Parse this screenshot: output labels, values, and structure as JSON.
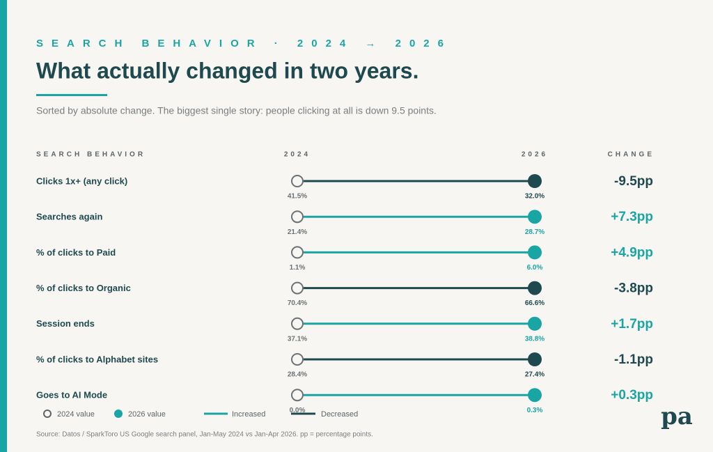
{
  "header": {
    "kicker": "SEARCH BEHAVIOR · 2024 → 2026",
    "title": "What actually changed in two years.",
    "subtitle": "Sorted by absolute change. The biggest single story: people clicking at all is down 9.5 points."
  },
  "columns": {
    "behavior": "SEARCH BEHAVIOR",
    "start": "2024",
    "end": "2026",
    "change": "CHANGE"
  },
  "rows": [
    {
      "label": "Clicks 1x+ (any click)",
      "start": "41.5%",
      "end": "32.0%",
      "change": "-9.5pp",
      "color": "#1e4a4f"
    },
    {
      "label": "Searches again",
      "start": "21.4%",
      "end": "28.7%",
      "change": "+7.3pp",
      "color": "#1aa5a5"
    },
    {
      "label": "% of clicks to Paid",
      "start": "1.1%",
      "end": "6.0%",
      "change": "+4.9pp",
      "color": "#1aa5a5"
    },
    {
      "label": "% of clicks to Organic",
      "start": "70.4%",
      "end": "66.6%",
      "change": "-3.8pp",
      "color": "#1e4a4f"
    },
    {
      "label": "Session ends",
      "start": "37.1%",
      "end": "38.8%",
      "change": "+1.7pp",
      "color": "#1aa5a5"
    },
    {
      "label": "% of clicks to Alphabet sites",
      "start": "28.4%",
      "end": "27.4%",
      "change": "-1.1pp",
      "color": "#1e4a4f"
    },
    {
      "label": "Goes to AI Mode",
      "start": "0.0%",
      "end": "0.3%",
      "change": "+0.3pp",
      "color": "#1aa5a5"
    }
  ],
  "legend": {
    "start": "2024 value",
    "end": "2026 value",
    "increased": "Increased",
    "decreased": "Decreased",
    "increased_color": "#1aa5a5",
    "decreased_color": "#1e4a4f"
  },
  "source": "Source: Datos / SparkToro US Google search panel, Jan-May 2024 vs Jan-Apr 2026. pp = percentage points.",
  "logo": "pa"
}
